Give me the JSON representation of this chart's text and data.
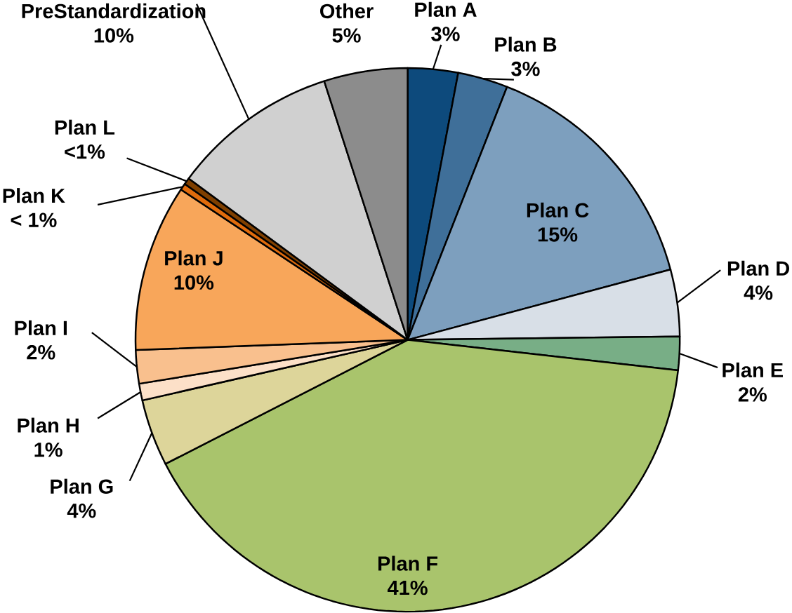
{
  "chart_data": {
    "type": "pie",
    "categories": [
      "Plan A",
      "Plan B",
      "Plan C",
      "Plan D",
      "Plan E",
      "Plan F",
      "Plan G",
      "Plan H",
      "Plan I",
      "Plan J",
      "Plan K",
      "Plan L",
      "PreStandardization",
      "Other"
    ],
    "values": [
      3,
      3,
      15,
      4,
      2,
      41,
      4,
      1,
      2,
      10,
      0.4,
      0.4,
      10,
      5
    ],
    "value_labels": [
      "3%",
      "3%",
      "15%",
      "4%",
      "2%",
      "41%",
      "4%",
      "1%",
      "2%",
      "10%",
      "< 1%",
      "<1%",
      "10%",
      "5%"
    ],
    "colors": [
      "#0d4a7c",
      "#3f6f99",
      "#7d9fbe",
      "#d8dfe7",
      "#78ae86",
      "#a9c46c",
      "#ddd59a",
      "#fce0c8",
      "#f9c08e",
      "#f8a65a",
      "#e06b0c",
      "#7f3f00",
      "#d0d0d0",
      "#8c8c8c"
    ]
  }
}
